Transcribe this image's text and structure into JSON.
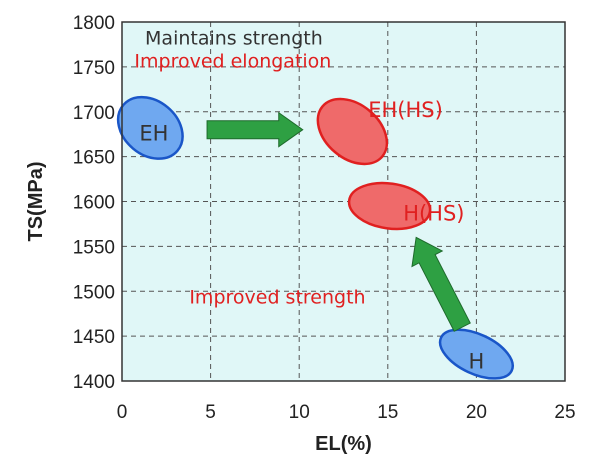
{
  "chart_data": {
    "type": "scatter",
    "xlabel": "EL(%)",
    "ylabel": "TS(MPa)",
    "xlim": [
      0,
      25
    ],
    "ylim": [
      1400,
      1800
    ],
    "xticks": [
      0,
      5,
      10,
      15,
      20,
      25
    ],
    "yticks": [
      1400,
      1450,
      1500,
      1550,
      1600,
      1650,
      1700,
      1750,
      1800
    ],
    "grid": true,
    "regions": [
      {
        "label": "EH",
        "x": 1.6,
        "y": 1682,
        "rx": 2.0,
        "ry": 30,
        "tilt": 40,
        "fill": "#6fa8f0",
        "stroke": "#1a56c8",
        "label_color": "#333333",
        "label_x": 1.8,
        "label_y": 1677
      },
      {
        "label": "EH(HS)",
        "x": 13.0,
        "y": 1678,
        "rx": 2.2,
        "ry": 30,
        "tilt": 40,
        "fill": "#ef6a6a",
        "stroke": "#e02020",
        "label_color": "#e02020",
        "label_x": 16.0,
        "label_y": 1703
      },
      {
        "label": "H(HS)",
        "x": 15.1,
        "y": 1595,
        "rx": 2.3,
        "ry": 25,
        "tilt": 8,
        "fill": "#ef6a6a",
        "stroke": "#e02020",
        "label_color": "#e02020",
        "label_x": 17.6,
        "label_y": 1588
      },
      {
        "label": "H",
        "x": 20.0,
        "y": 1430,
        "rx": 2.2,
        "ry": 22,
        "tilt": 25,
        "fill": "#6fa8f0",
        "stroke": "#1a56c8",
        "label_color": "#333333",
        "label_x": 20.0,
        "label_y": 1423
      }
    ],
    "arrows": [
      {
        "from": [
          4.8,
          1680
        ],
        "to": [
          10.2,
          1680
        ],
        "color": "#2ea043"
      },
      {
        "from": [
          19.2,
          1460
        ],
        "to": [
          16.6,
          1560
        ],
        "color": "#2ea043"
      }
    ],
    "annotations": [
      {
        "text": "Maintains strength",
        "x": 1.3,
        "y": 1783,
        "color": "#333333"
      },
      {
        "text": "Improved elongation",
        "x": 0.7,
        "y": 1757,
        "color": "#e02020"
      },
      {
        "text": "Improved strength",
        "x": 3.8,
        "y": 1494,
        "color": "#e02020"
      }
    ],
    "colors": {
      "plot_background": "#e0f7f7",
      "grid": "#555555",
      "axis": "#333333"
    }
  }
}
